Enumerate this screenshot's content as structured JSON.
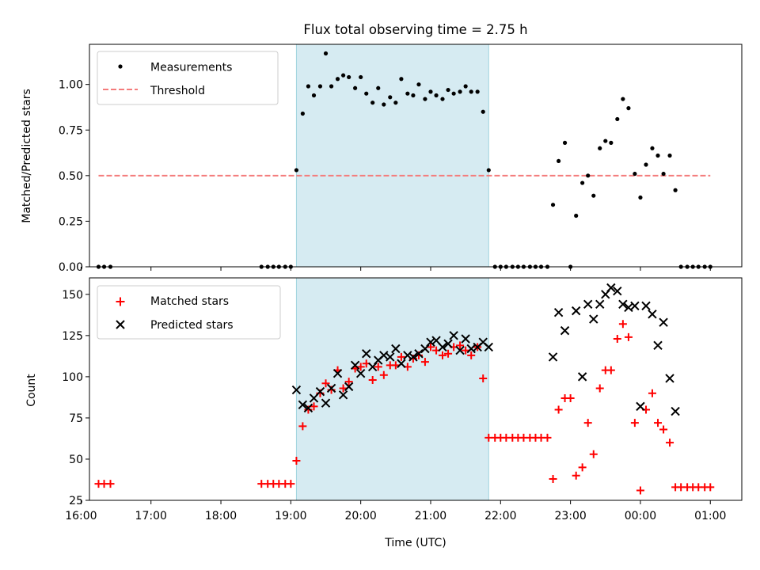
{
  "chart_data": [
    {
      "type": "scatter",
      "title": "Flux total observing time = 2.75 h",
      "xlabel": "",
      "ylabel": "Matched/Predicted stars",
      "ylim": [
        0,
        1.22
      ],
      "yticks": [
        "0.00",
        "0.25",
        "0.50",
        "0.75",
        "1.00"
      ],
      "ytick_values": [
        0,
        0.25,
        0.5,
        0.75,
        1.0
      ],
      "xlim": [
        16.12,
        25.45
      ],
      "shaded_span": [
        19.08,
        21.83
      ],
      "legend": {
        "placement": "upper-left",
        "entries": [
          "Measurements",
          "Threshold"
        ]
      },
      "threshold": {
        "name": "Threshold",
        "value": 0.5,
        "x_range": [
          16.25,
          25.0
        ],
        "color": "#f47c7c",
        "style": "dashed"
      },
      "series": [
        {
          "name": "Measurements",
          "marker": "dot",
          "color": "#000000",
          "x": [
            16.25,
            16.33,
            16.42,
            18.58,
            18.67,
            18.75,
            18.83,
            18.92,
            19.0,
            19.08,
            19.17,
            19.25,
            19.33,
            19.42,
            19.5,
            19.58,
            19.67,
            19.75,
            19.83,
            19.92,
            20.0,
            20.08,
            20.17,
            20.25,
            20.33,
            20.42,
            20.5,
            20.58,
            20.67,
            20.75,
            20.83,
            20.92,
            21.0,
            21.08,
            21.17,
            21.25,
            21.33,
            21.42,
            21.5,
            21.58,
            21.67,
            21.75,
            21.83,
            21.92,
            22.0,
            22.08,
            22.17,
            22.25,
            22.33,
            22.42,
            22.5,
            22.58,
            22.67,
            22.75,
            22.83,
            22.92,
            23.0,
            23.08,
            23.17,
            23.25,
            23.33,
            23.42,
            23.5,
            23.58,
            23.67,
            23.75,
            23.83,
            23.92,
            24.0,
            24.08,
            24.17,
            24.25,
            24.33,
            24.42,
            24.5,
            24.58,
            24.67,
            24.75,
            24.83,
            24.92,
            25.0
          ],
          "y": [
            0,
            0,
            0,
            0,
            0,
            0,
            0,
            0,
            0,
            0.53,
            0.84,
            0.99,
            0.94,
            0.99,
            1.17,
            0.99,
            1.03,
            1.05,
            1.04,
            0.98,
            1.04,
            0.95,
            0.9,
            0.98,
            0.89,
            0.93,
            0.9,
            1.03,
            0.95,
            0.94,
            1.0,
            0.92,
            0.96,
            0.94,
            0.92,
            0.97,
            0.95,
            0.96,
            0.99,
            0.96,
            0.96,
            0.85,
            0.53,
            0,
            0,
            0,
            0,
            0,
            0,
            0,
            0,
            0,
            0,
            0.34,
            0.58,
            0.68,
            0,
            0.28,
            0.46,
            0.5,
            0.39,
            0.65,
            0.69,
            0.68,
            0.81,
            0.92,
            0.87,
            0.51,
            0.38,
            0.56,
            0.65,
            0.61,
            0.51,
            0.61,
            0.42,
            0,
            0,
            0,
            0,
            0,
            0
          ]
        }
      ]
    },
    {
      "type": "scatter",
      "title": "",
      "xlabel": "Time (UTC)",
      "ylabel": "Count",
      "ylim": [
        25,
        160
      ],
      "yticks": [
        "25",
        "50",
        "75",
        "100",
        "125",
        "150"
      ],
      "ytick_values": [
        25,
        50,
        75,
        100,
        125,
        150
      ],
      "xlim": [
        16.12,
        25.45
      ],
      "xticks": [
        "16:00",
        "17:00",
        "18:00",
        "19:00",
        "20:00",
        "21:00",
        "22:00",
        "23:00",
        "00:00",
        "01:00"
      ],
      "xtick_values": [
        16,
        17,
        18,
        19,
        20,
        21,
        22,
        23,
        24,
        25
      ],
      "shaded_span": [
        19.08,
        21.83
      ],
      "legend": {
        "placement": "upper-left",
        "entries": [
          "Matched stars",
          "Predicted stars"
        ]
      },
      "series": [
        {
          "name": "Matched stars",
          "marker": "plus",
          "color": "#ff0000",
          "x": [
            16.25,
            16.33,
            16.42,
            18.58,
            18.67,
            18.75,
            18.83,
            18.92,
            19.0,
            19.08,
            19.17,
            19.25,
            19.33,
            19.42,
            19.5,
            19.58,
            19.67,
            19.75,
            19.83,
            19.92,
            20.0,
            20.08,
            20.17,
            20.25,
            20.33,
            20.42,
            20.5,
            20.58,
            20.67,
            20.75,
            20.83,
            20.92,
            21.0,
            21.08,
            21.17,
            21.25,
            21.33,
            21.42,
            21.5,
            21.58,
            21.67,
            21.75,
            21.83,
            21.92,
            22.0,
            22.08,
            22.17,
            22.25,
            22.33,
            22.42,
            22.5,
            22.58,
            22.67,
            22.75,
            22.83,
            22.92,
            23.0,
            23.08,
            23.17,
            23.25,
            23.33,
            23.42,
            23.5,
            23.58,
            23.67,
            23.75,
            23.83,
            23.92,
            24.0,
            24.08,
            24.17,
            24.25,
            24.33,
            24.42,
            24.5,
            24.58,
            24.67,
            24.75,
            24.83,
            24.92,
            25.0
          ],
          "y": [
            35,
            35,
            35,
            35,
            35,
            35,
            35,
            35,
            35,
            49,
            70,
            80,
            82,
            90,
            96,
            92,
            104,
            93,
            97,
            105,
            106,
            108,
            98,
            106,
            101,
            107,
            107,
            112,
            106,
            111,
            113,
            109,
            118,
            116,
            113,
            114,
            118,
            119,
            116,
            113,
            118,
            99,
            63,
            63,
            63,
            63,
            63,
            63,
            63,
            63,
            63,
            63,
            63,
            38,
            80,
            87,
            87,
            40,
            45,
            72,
            53,
            93,
            104,
            104,
            123,
            132,
            124,
            72,
            31,
            80,
            90,
            72,
            68,
            60,
            33,
            33,
            33,
            33,
            33,
            33,
            33
          ]
        },
        {
          "name": "Predicted stars",
          "marker": "x",
          "color": "#000000",
          "x": [
            19.08,
            19.17,
            19.25,
            19.33,
            19.42,
            19.5,
            19.58,
            19.67,
            19.75,
            19.83,
            19.92,
            20.0,
            20.08,
            20.17,
            20.25,
            20.33,
            20.42,
            20.5,
            20.58,
            20.67,
            20.75,
            20.83,
            20.92,
            21.0,
            21.08,
            21.17,
            21.25,
            21.33,
            21.42,
            21.5,
            21.58,
            21.67,
            21.75,
            21.83,
            22.75,
            22.83,
            22.92,
            23.08,
            23.17,
            23.25,
            23.33,
            23.42,
            23.5,
            23.58,
            23.67,
            23.75,
            23.83,
            23.92,
            24.0,
            24.08,
            24.17,
            24.25,
            24.33,
            24.42,
            24.5
          ],
          "y": [
            92,
            83,
            81,
            87,
            91,
            84,
            93,
            102,
            89,
            94,
            107,
            102,
            114,
            106,
            110,
            113,
            112,
            117,
            108,
            113,
            112,
            114,
            117,
            121,
            122,
            118,
            120,
            125,
            116,
            123,
            117,
            118,
            121,
            118,
            112,
            139,
            128,
            140,
            100,
            144,
            135,
            144,
            150,
            154,
            152,
            144,
            142,
            143,
            82,
            143,
            138,
            119,
            133,
            99,
            79
          ]
        }
      ]
    }
  ]
}
